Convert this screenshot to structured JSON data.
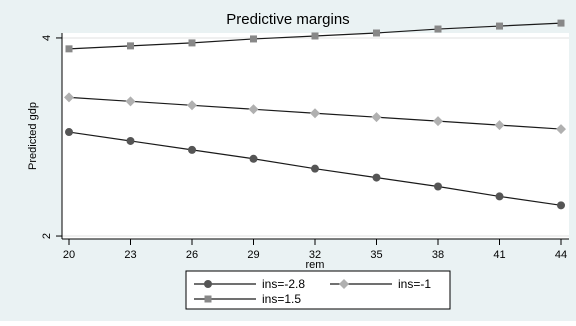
{
  "chart_data": {
    "type": "line",
    "title": "Predictive margins",
    "xlabel": "rem",
    "ylabel": "Predicted gdp",
    "x": [
      20,
      23,
      26,
      29,
      32,
      35,
      38,
      41,
      44
    ],
    "xticks": [
      "20",
      "23",
      "26",
      "29",
      "32",
      "35",
      "38",
      "41",
      "44"
    ],
    "yticks": [
      "2",
      "4"
    ],
    "ylim": [
      1.97,
      4.05
    ],
    "xlim": [
      20,
      44
    ],
    "grid": "horizontal",
    "legend_position": "bottom",
    "series": [
      {
        "name": "ins=-2.8",
        "marker": "circle",
        "color": "#555555",
        "values": [
          3.05,
          2.96,
          2.87,
          2.78,
          2.68,
          2.59,
          2.5,
          2.4,
          2.31
        ]
      },
      {
        "name": "ins=-1",
        "marker": "diamond",
        "color": "#b0b0b0",
        "values": [
          3.4,
          3.36,
          3.32,
          3.28,
          3.24,
          3.2,
          3.16,
          3.12,
          3.08
        ]
      },
      {
        "name": "ins=1.5",
        "marker": "square",
        "color": "#888888",
        "values": [
          3.89,
          3.92,
          3.95,
          3.99,
          4.02,
          4.05,
          4.09,
          4.12,
          4.15
        ]
      }
    ]
  }
}
